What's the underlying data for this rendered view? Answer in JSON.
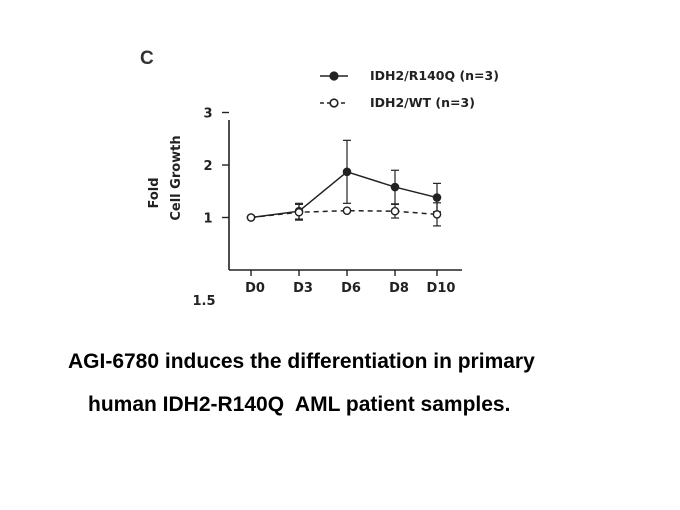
{
  "chart_data": {
    "type": "line",
    "panel_label": "C",
    "ylabel": [
      "Fold",
      "Cell Growth"
    ],
    "xlabel": "",
    "categories": [
      "D0",
      "D3",
      "D6",
      "D8",
      "D10"
    ],
    "ylim": [
      0,
      3
    ],
    "yticks": [
      1,
      2,
      3
    ],
    "extra_label": "1.5",
    "legend_position": "top-right",
    "series": [
      {
        "name": "IDH2/R140Q (n=3)",
        "marker": "filled-circle",
        "line_style": "solid",
        "color": "#222222",
        "values": [
          1.0,
          1.12,
          1.87,
          1.58,
          1.38
        ],
        "errors": [
          0.0,
          0.15,
          0.6,
          0.32,
          0.27
        ]
      },
      {
        "name": "IDH2/WT (n=3)",
        "marker": "open-circle",
        "line_style": "dashed",
        "color": "#222222",
        "values": [
          1.0,
          1.1,
          1.13,
          1.12,
          1.06
        ],
        "errors": [
          0.0,
          0.15,
          0.0,
          0.13,
          0.22
        ]
      }
    ]
  },
  "caption": {
    "line1": "AGI-6780 induces the differentiation in primary",
    "line2": "human IDH2-R140Q  AML patient samples."
  }
}
